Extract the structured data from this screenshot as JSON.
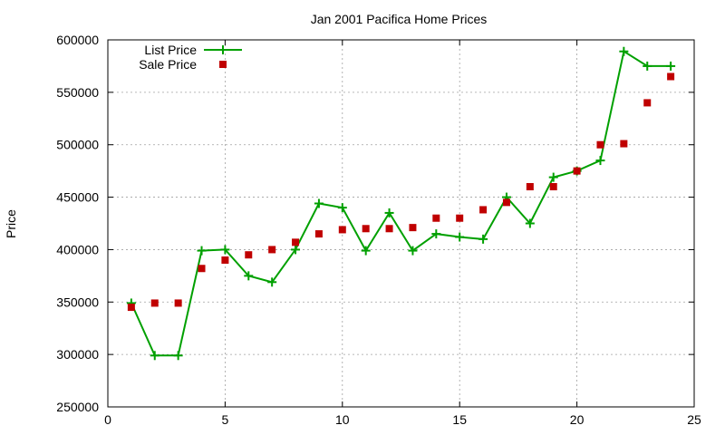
{
  "chart_data": {
    "type": "line",
    "title": "Jan 2001 Pacifica Home Prices",
    "xlabel": "",
    "ylabel": "Price",
    "xlim": [
      0,
      25
    ],
    "ylim": [
      250000,
      600000
    ],
    "xticks": [
      "0",
      "5",
      "10",
      "15",
      "20",
      "25"
    ],
    "yticks": [
      "250000",
      "300000",
      "350000",
      "400000",
      "450000",
      "500000",
      "550000",
      "600000"
    ],
    "grid": true,
    "legend_position": "top-left",
    "series": [
      {
        "name": "List Price",
        "style": "line-with-plus-markers",
        "color": "#00a000",
        "x": [
          1,
          2,
          3,
          4,
          5,
          6,
          7,
          8,
          9,
          10,
          11,
          12,
          13,
          14,
          15,
          16,
          17,
          18,
          19,
          20,
          21,
          22,
          23,
          24
        ],
        "y": [
          349000,
          299000,
          299000,
          399000,
          400000,
          375000,
          369000,
          400000,
          444000,
          440000,
          399000,
          435000,
          399000,
          415000,
          412000,
          410000,
          450000,
          425000,
          469000,
          475000,
          485000,
          589000,
          575000,
          575000
        ]
      },
      {
        "name": "Sale Price",
        "style": "square-markers",
        "color": "#c00000",
        "x": [
          1,
          2,
          3,
          4,
          5,
          6,
          7,
          8,
          9,
          10,
          11,
          12,
          13,
          14,
          15,
          16,
          17,
          18,
          19,
          20,
          21,
          22,
          23,
          24
        ],
        "y": [
          345000,
          349000,
          349000,
          382000,
          390000,
          395000,
          400000,
          407000,
          415000,
          419000,
          420000,
          420000,
          421000,
          430000,
          430000,
          438000,
          445000,
          460000,
          460000,
          475000,
          500000,
          501000,
          540000,
          565000
        ]
      }
    ]
  }
}
